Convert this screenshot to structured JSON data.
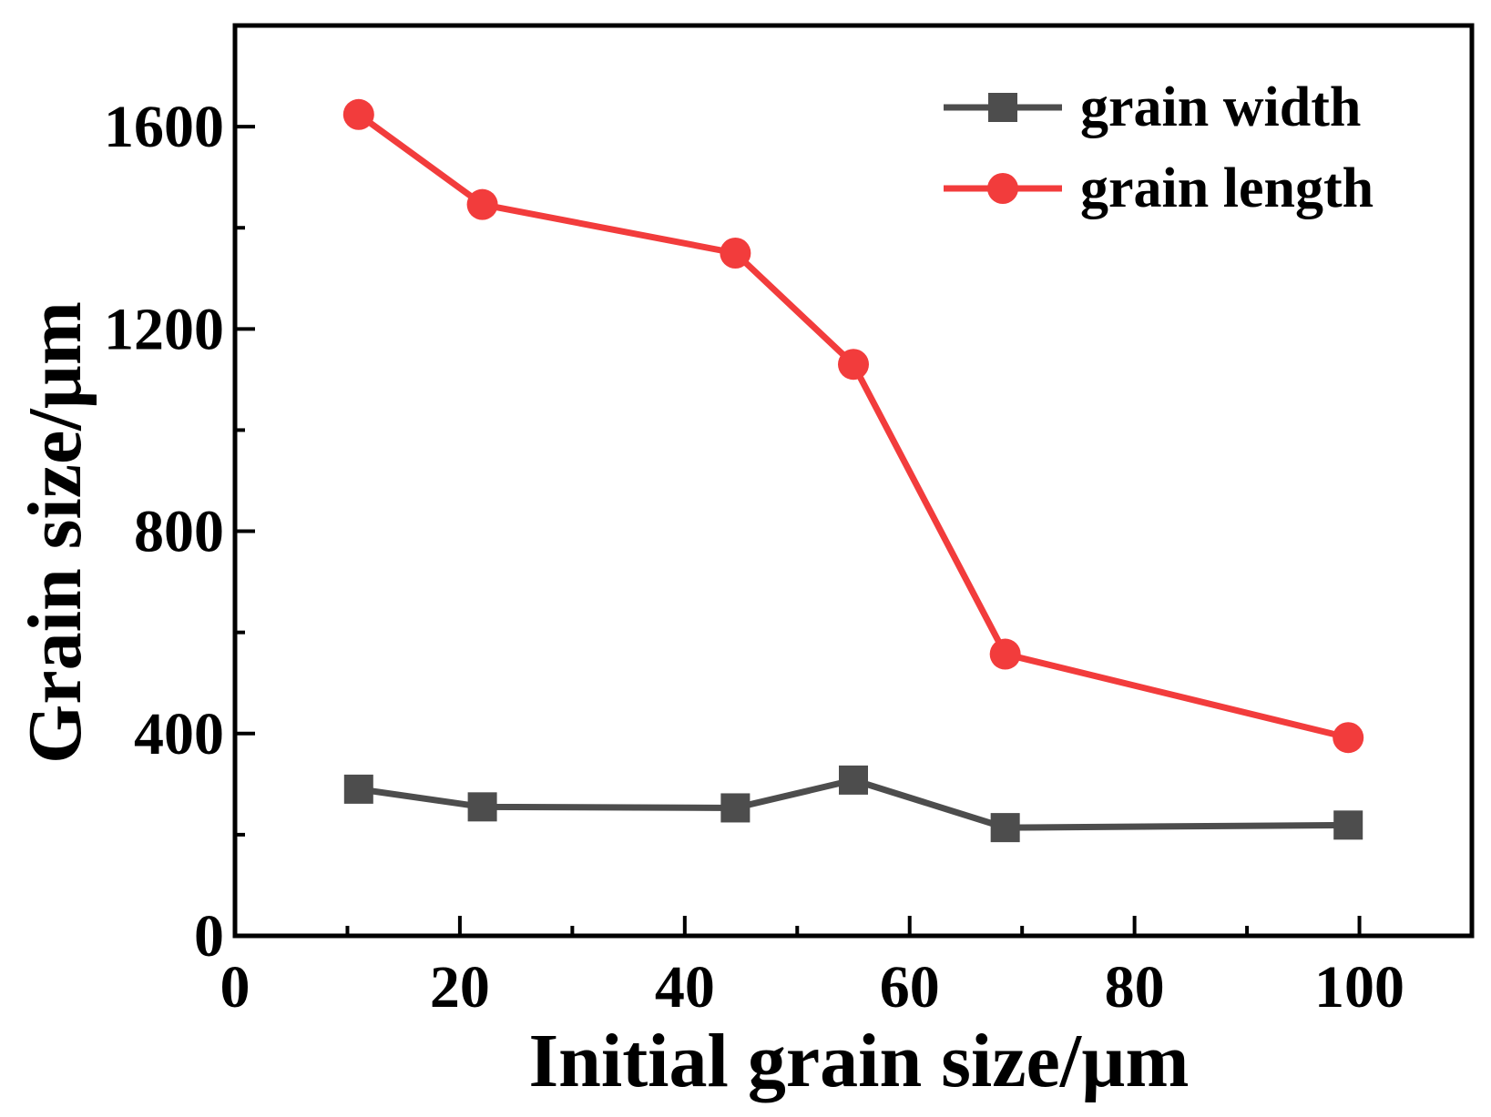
{
  "chart_data": {
    "type": "line",
    "title": "",
    "xlabel": "Initial grain size/µm",
    "ylabel": "Grain size/µm",
    "xlim": [
      0,
      110
    ],
    "ylim": [
      0,
      1800
    ],
    "x_ticks": [
      0,
      20,
      40,
      60,
      80,
      100
    ],
    "x_tick_labels": [
      "0",
      "20",
      "40",
      "60",
      "80",
      "100"
    ],
    "x_minor_ticks": [
      10,
      30,
      50,
      70,
      90
    ],
    "y_ticks": [
      0,
      400,
      800,
      1200,
      1600
    ],
    "y_tick_labels": [
      "0",
      "400",
      "800",
      "1200",
      "1600"
    ],
    "y_minor_ticks": [
      200,
      600,
      1000,
      1400
    ],
    "grid": false,
    "legend_position": "top-right",
    "series": [
      {
        "name": "grain width",
        "color": "#4d4d4d",
        "marker": "square",
        "x": [
          11,
          22,
          44.5,
          55,
          68.5,
          99
        ],
        "values": [
          290,
          255,
          253,
          308,
          214,
          219
        ]
      },
      {
        "name": "grain length",
        "color": "#f23c3c",
        "marker": "circle",
        "x": [
          11,
          22,
          44.5,
          55,
          68.5,
          99
        ],
        "values": [
          1624,
          1446,
          1350,
          1130,
          557,
          392
        ]
      }
    ]
  }
}
